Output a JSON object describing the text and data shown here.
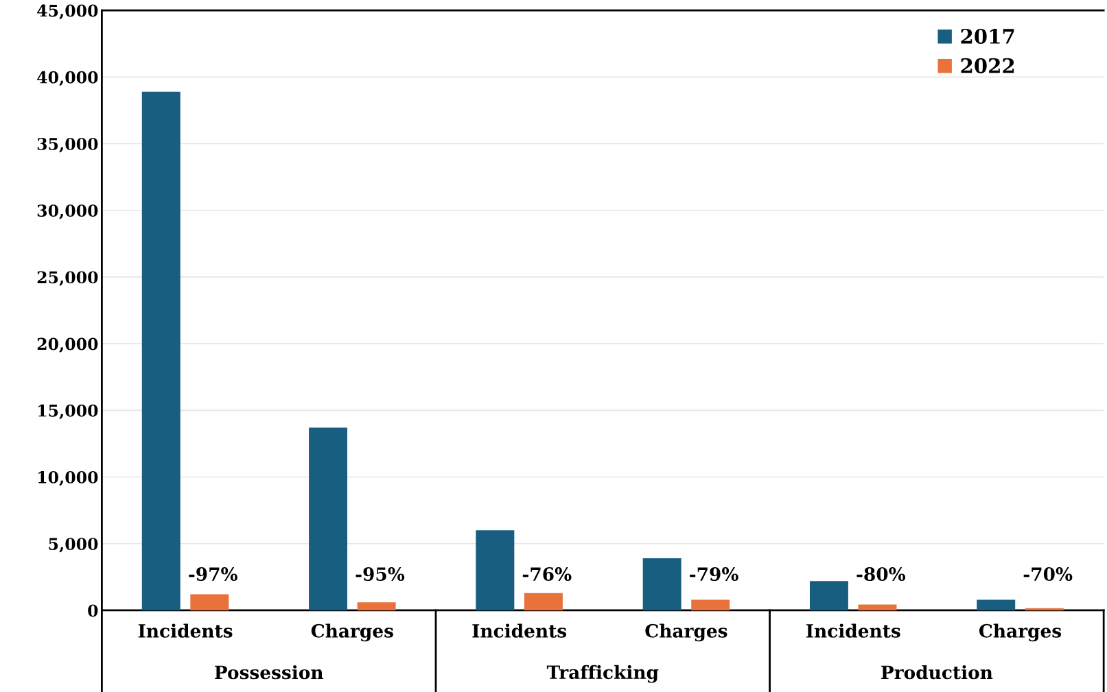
{
  "chart_data": {
    "type": "bar",
    "categories": [
      "Incidents",
      "Charges",
      "Incidents",
      "Charges",
      "Incidents",
      "Charges"
    ],
    "series": [
      {
        "name": "2017",
        "color": "#175e80",
        "values": [
          38900,
          13700,
          6000,
          3900,
          2200,
          800
        ]
      },
      {
        "name": "2022",
        "color": "#e8723a",
        "values": [
          1200,
          600,
          1300,
          800,
          430,
          160
        ]
      }
    ],
    "ylim": [
      0,
      45000
    ],
    "yticks": [
      {
        "value": 0,
        "label": "0"
      },
      {
        "value": 5000,
        "label": "5,000"
      },
      {
        "value": 10000,
        "label": "10,000"
      },
      {
        "value": 15000,
        "label": "15,000"
      },
      {
        "value": 20000,
        "label": "20,000"
      },
      {
        "value": 25000,
        "label": "25,000"
      },
      {
        "value": 30000,
        "label": "30,000"
      },
      {
        "value": 35000,
        "label": "35,000"
      },
      {
        "value": 40000,
        "label": "40,000"
      },
      {
        "value": 45000,
        "label": "45,000"
      }
    ],
    "annotations": [
      "-97%",
      "-95%",
      "-76%",
      "-79%",
      "-80%",
      "-70%",
      "Possession",
      "Trafficking",
      "Production"
    ],
    "grid": "y",
    "legend": "top right"
  }
}
